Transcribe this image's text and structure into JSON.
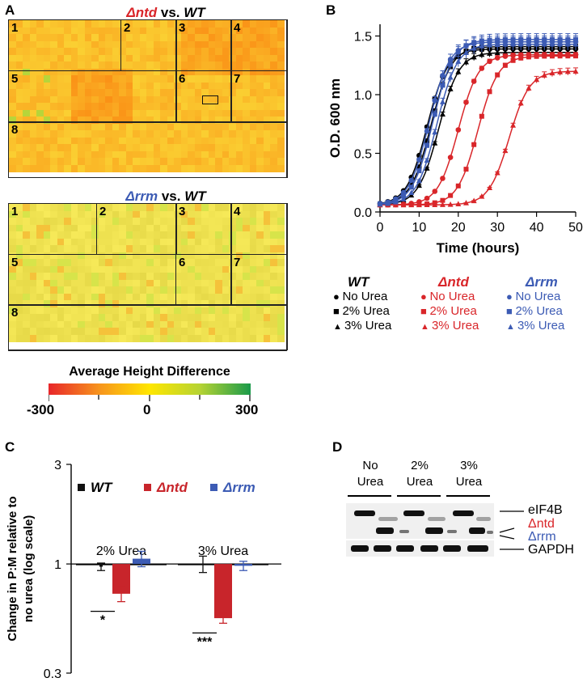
{
  "panel_A": {
    "letter": "A",
    "top_title": {
      "mutant": "Δntd",
      "vs": " vs. ",
      "wt": "WT"
    },
    "bottom_title": {
      "mutant": "Δrrm",
      "vs": " vs. ",
      "wt": "WT"
    },
    "regions": [
      "1",
      "2",
      "3",
      "4",
      "5",
      "6",
      "7",
      "8"
    ],
    "colorbar": {
      "title": "Average Height Difference",
      "min": "-300",
      "mid": "0",
      "max": "300",
      "colors": [
        "#e8262a",
        "#f7941d",
        "#ffe600",
        "#b5d334",
        "#1a9a4a"
      ]
    }
  },
  "panel_B": {
    "letter": "B",
    "chart_data": {
      "type": "line",
      "xlabel": "Time (hours)",
      "ylabel": "O.D. 600 nm",
      "xlim": [
        0,
        50
      ],
      "ylim": [
        0,
        1.6
      ],
      "xticks": [
        "0",
        "10",
        "20",
        "30",
        "40",
        "50"
      ],
      "yticks": [
        "0.0",
        "0.5",
        "1.0",
        "1.5"
      ],
      "series": [
        {
          "name": "WT No Urea",
          "color": "#000000",
          "marker": "circle",
          "mid": 12,
          "max": 1.39,
          "err": 0.02
        },
        {
          "name": "WT 2% Urea",
          "color": "#000000",
          "marker": "square",
          "mid": 13,
          "max": 1.41,
          "err": 0.02
        },
        {
          "name": "WT 3% Urea",
          "color": "#000000",
          "marker": "triangle",
          "mid": 15,
          "max": 1.36,
          "err": 0.03
        },
        {
          "name": "Δntd No Urea",
          "color": "#d9262a",
          "marker": "circle",
          "mid": 20,
          "max": 1.34,
          "err": 0.02
        },
        {
          "name": "Δntd 2% Urea",
          "color": "#d9262a",
          "marker": "square",
          "mid": 25,
          "max": 1.33,
          "err": 0.02
        },
        {
          "name": "Δntd 3% Urea",
          "color": "#d9262a",
          "marker": "triangle",
          "mid": 33,
          "max": 1.2,
          "err": 0.03
        },
        {
          "name": "Δrrm No Urea",
          "color": "#3c5bb4",
          "marker": "circle",
          "mid": 12.5,
          "max": 1.45,
          "err": 0.05
        },
        {
          "name": "Δrrm 2% Urea",
          "color": "#3c5bb4",
          "marker": "square",
          "mid": 13.5,
          "max": 1.47,
          "err": 0.05
        },
        {
          "name": "Δrrm 3% Urea",
          "color": "#3c5bb4",
          "marker": "triangle",
          "mid": 14.5,
          "max": 1.43,
          "err": 0.05
        }
      ]
    },
    "legend": {
      "headers": [
        "WT",
        "Δntd",
        "Δrrm"
      ],
      "rows": [
        "No Urea",
        "2% Urea",
        "3% Urea"
      ]
    }
  },
  "panel_C": {
    "letter": "C",
    "chart_data": {
      "type": "bar",
      "ylabel": "Change in P:M relative to no urea (log scale)",
      "yscale": "log",
      "ylim": [
        0.3,
        3
      ],
      "yticks": [
        "3",
        "1",
        "0.3"
      ],
      "groups": [
        "2% Urea",
        "3% Urea"
      ],
      "series": [
        {
          "name": "WT",
          "color": "#111111",
          "values": [
            0.97,
            1.0
          ],
          "err": [
            0.04,
            0.09
          ]
        },
        {
          "name": "Δntd",
          "color": "#c8252b",
          "values": [
            0.72,
            0.55
          ],
          "err": [
            0.06,
            0.03
          ]
        },
        {
          "name": "Δrrm",
          "color": "#3c5bb4",
          "values": [
            1.06,
            0.98
          ],
          "err": [
            0.09,
            0.05
          ]
        }
      ],
      "significance": [
        "*",
        "***"
      ]
    }
  },
  "panel_D": {
    "letter": "D",
    "lanes": [
      {
        "l1": "No",
        "l2": "Urea"
      },
      {
        "l1": "2%",
        "l2": "Urea"
      },
      {
        "l1": "3%",
        "l2": "Urea"
      }
    ],
    "labels": {
      "eif4b": "eIF4B",
      "ntd": "Δntd",
      "rrm": "Δrrm",
      "gapdh": "GAPDH"
    }
  }
}
